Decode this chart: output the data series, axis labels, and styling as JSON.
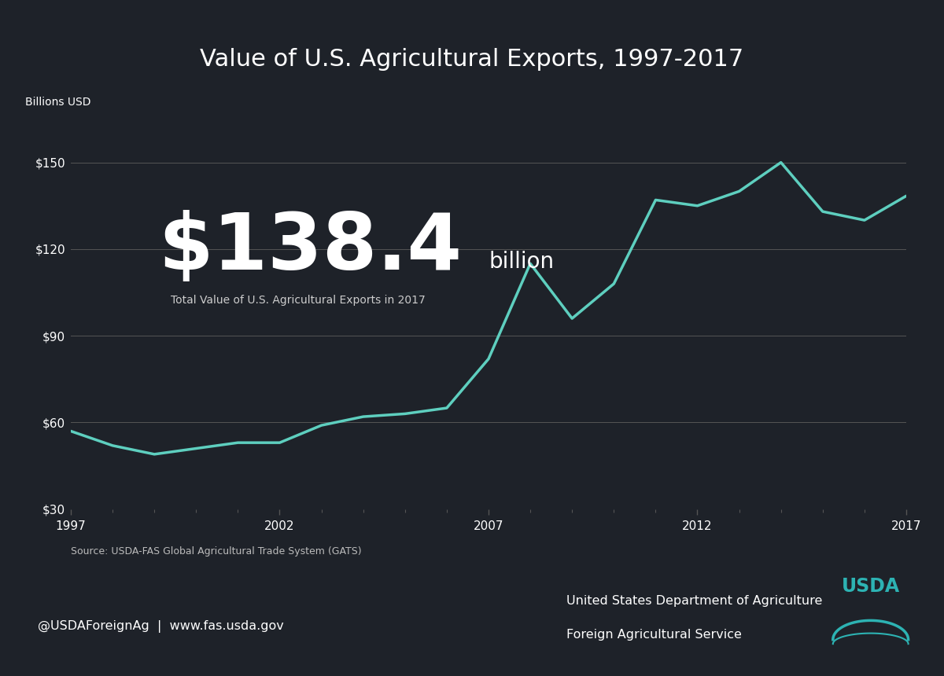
{
  "title": "Value of U.S. Agricultural Exports, 1997-2017",
  "title_color": "#ffffff",
  "title_bg_color": "#2db3b3",
  "chart_bg_color": "#1e2229",
  "footer_bg_color": "#2db3b3",
  "line_color": "#5ecfbf",
  "grid_color": "#555555",
  "text_color": "#ffffff",
  "ylabel": "Billions USD",
  "source_text": "Source: USDA-FAS Global Agricultural Trade System (GATS)",
  "big_number": "$138.4",
  "big_number_suffix": " billion",
  "big_number_subtext": "Total Value of U.S. Agricultural Exports in 2017",
  "footer_left": "@USDAForeignAg  |  www.fas.usda.gov",
  "footer_right1": "United States Department of Agriculture",
  "footer_right2": "Foreign Agricultural Service",
  "years": [
    1997,
    1998,
    1999,
    2000,
    2001,
    2002,
    2003,
    2004,
    2005,
    2006,
    2007,
    2008,
    2009,
    2010,
    2011,
    2012,
    2013,
    2014,
    2015,
    2016,
    2017
  ],
  "values": [
    57,
    52,
    49,
    51,
    53,
    53,
    59,
    62,
    63,
    65,
    82,
    115,
    96,
    108,
    137,
    135,
    140,
    150,
    133,
    130,
    138.4
  ],
  "xlim": [
    1997,
    2017
  ],
  "ylim": [
    30,
    165
  ],
  "yticks": [
    30,
    60,
    90,
    120,
    150
  ],
  "xtick_years": [
    1997,
    2002,
    2007,
    2012,
    2017
  ]
}
